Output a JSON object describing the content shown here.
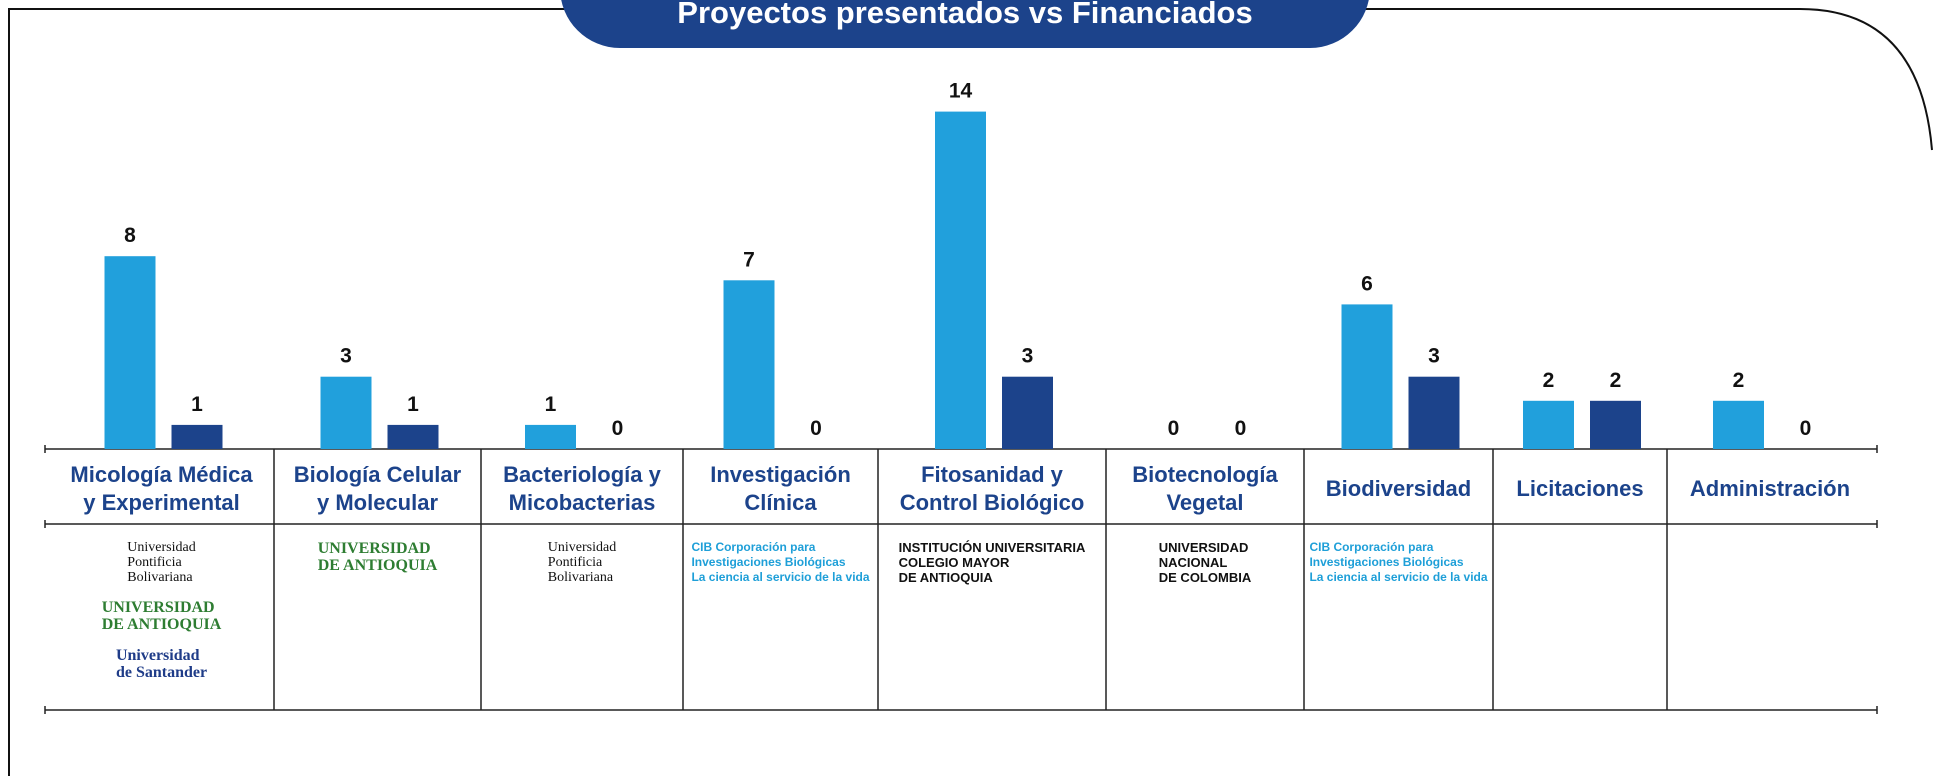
{
  "chart_data": {
    "type": "bar",
    "title": "Proyectos presentados vs Financiados",
    "categories": [
      "Micología Médica\ny Experimental",
      "Biología Celular\ny Molecular",
      "Bacteriología y\nMicobacterias",
      "Investigación\nClínica",
      "Fitosanidad y\nControl Biológico",
      "Biotecnología\nVegetal",
      "Biodiversidad",
      "Licitaciones",
      "Administración"
    ],
    "series": [
      {
        "color": "#21a0dc",
        "values": [
          8,
          3,
          1,
          7,
          14,
          0,
          6,
          2,
          2
        ]
      },
      {
        "color": "#1c438b",
        "values": [
          1,
          1,
          0,
          0,
          3,
          0,
          3,
          2,
          0
        ]
      }
    ],
    "logos": [
      [
        "Universidad\nPontificia\nBolivariana",
        "UNIVERSIDAD\nDE ANTIOQUIA",
        "Universidad\nde Santander"
      ],
      [
        "UNIVERSIDAD\nDE ANTIOQUIA"
      ],
      [
        "Universidad\nPontificia\nBolivariana"
      ],
      [
        "CIB Corporación para\nInvestigaciones Biológicas\nLa ciencia al servicio de la vida"
      ],
      [
        "INSTITUCIÓN UNIVERSITARIA\nCOLEGIO MAYOR\nDE ANTIOQUIA"
      ],
      [
        "UNIVERSIDAD\nNACIONAL\nDE COLOMBIA"
      ],
      [
        "CIB Corporación para\nInvestigaciones Biológicas\nLa ciencia al servicio de la vida"
      ],
      [],
      []
    ]
  }
}
